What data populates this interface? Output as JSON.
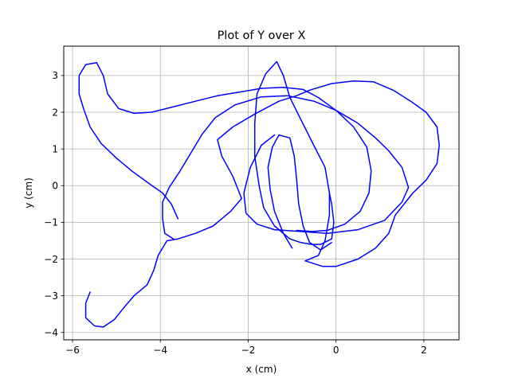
{
  "chart_data": {
    "type": "line",
    "title": "Plot of Y over X",
    "xlabel": "x (cm)",
    "ylabel": "y (cm)",
    "xlim": [
      -6.2,
      2.8
    ],
    "ylim": [
      -4.2,
      3.8
    ],
    "grid": true,
    "x_ticks": [
      -6,
      -4,
      -2,
      0,
      2
    ],
    "y_ticks": [
      -4,
      -3,
      -2,
      -1,
      0,
      1,
      2,
      3
    ],
    "x_tick_labels": [
      "−6",
      "−4",
      "−2",
      "0",
      "2"
    ],
    "y_tick_labels": [
      "−4",
      "−3",
      "−2",
      "−1",
      "0",
      "1",
      "2",
      "3"
    ],
    "series": [
      {
        "color": "#0000ff",
        "points": [
          [
            -5.6,
            -2.9
          ],
          [
            -5.7,
            -3.2
          ],
          [
            -5.7,
            -3.6
          ],
          [
            -5.5,
            -3.82
          ],
          [
            -5.3,
            -3.85
          ],
          [
            -5.05,
            -3.65
          ],
          [
            -4.85,
            -3.35
          ],
          [
            -4.6,
            -3.0
          ],
          [
            -4.3,
            -2.7
          ],
          [
            -4.15,
            -2.3
          ],
          [
            -4.05,
            -1.9
          ],
          [
            -3.85,
            -1.5
          ],
          [
            -3.6,
            -1.45
          ],
          [
            -3.2,
            -1.3
          ],
          [
            -2.8,
            -1.1
          ],
          [
            -2.4,
            -0.7
          ],
          [
            -2.15,
            -0.35
          ],
          [
            -2.35,
            0.25
          ],
          [
            -2.6,
            0.8
          ],
          [
            -2.7,
            1.25
          ],
          [
            -2.35,
            1.6
          ],
          [
            -1.85,
            1.95
          ],
          [
            -1.3,
            2.3
          ],
          [
            -0.9,
            2.45
          ],
          [
            -0.6,
            2.6
          ],
          [
            -0.1,
            2.78
          ],
          [
            0.4,
            2.85
          ],
          [
            0.85,
            2.83
          ],
          [
            1.3,
            2.6
          ],
          [
            1.7,
            2.3
          ],
          [
            2.05,
            2.0
          ],
          [
            2.3,
            1.6
          ],
          [
            2.35,
            1.1
          ],
          [
            2.3,
            0.6
          ],
          [
            2.05,
            0.15
          ],
          [
            1.75,
            -0.2
          ],
          [
            1.35,
            -0.8
          ],
          [
            1.2,
            -1.3
          ],
          [
            0.9,
            -1.7
          ],
          [
            0.5,
            -2.0
          ],
          [
            0.0,
            -2.2
          ],
          [
            -0.3,
            -2.2
          ],
          [
            -0.7,
            -2.05
          ]
        ]
      },
      {
        "color": "#0000ff",
        "points": [
          [
            -0.7,
            -2.05
          ],
          [
            -0.4,
            -1.9
          ],
          [
            -0.25,
            -1.5
          ],
          [
            -0.15,
            -0.8
          ],
          [
            -0.15,
            -0.2
          ],
          [
            -0.25,
            0.5
          ],
          [
            -0.55,
            1.2
          ],
          [
            -0.8,
            1.8
          ],
          [
            -1.05,
            2.4
          ],
          [
            -1.2,
            3.0
          ],
          [
            -1.35,
            3.38
          ],
          [
            -1.6,
            3.05
          ],
          [
            -1.8,
            2.5
          ],
          [
            -1.85,
            1.7
          ],
          [
            -1.85,
            0.8
          ],
          [
            -1.75,
            0.0
          ],
          [
            -1.65,
            -0.6
          ],
          [
            -1.4,
            -1.1
          ],
          [
            -1.05,
            -1.45
          ],
          [
            -0.8,
            -1.55
          ],
          [
            -0.55,
            -1.6
          ],
          [
            -0.35,
            -1.6
          ],
          [
            -0.1,
            -1.45
          ],
          [
            -0.05,
            -1.0
          ],
          [
            -0.1,
            -0.5
          ],
          [
            -0.15,
            -0.2
          ]
        ]
      },
      {
        "color": "#0000ff",
        "points": [
          [
            -1.0,
            -1.7
          ],
          [
            -1.2,
            -1.3
          ],
          [
            -1.4,
            -0.7
          ],
          [
            -1.5,
            -0.1
          ],
          [
            -1.55,
            0.5
          ],
          [
            -1.45,
            1.05
          ],
          [
            -1.3,
            1.38
          ],
          [
            -1.05,
            1.3
          ],
          [
            -0.95,
            0.8
          ],
          [
            -0.9,
            0.2
          ],
          [
            -0.85,
            -0.5
          ],
          [
            -0.75,
            -1.1
          ],
          [
            -0.6,
            -1.55
          ],
          [
            -0.35,
            -1.75
          ],
          [
            -0.1,
            -1.55
          ]
        ]
      },
      {
        "color": "#0000ff",
        "points": [
          [
            -1.4,
            1.38
          ],
          [
            -1.7,
            1.1
          ],
          [
            -1.95,
            0.5
          ],
          [
            -2.1,
            -0.2
          ],
          [
            -2.05,
            -0.75
          ],
          [
            -1.8,
            -1.05
          ],
          [
            -1.4,
            -1.2
          ],
          [
            -0.8,
            -1.25
          ],
          [
            -0.2,
            -1.3
          ],
          [
            0.5,
            -1.2
          ],
          [
            1.1,
            -0.95
          ],
          [
            1.5,
            -0.45
          ],
          [
            1.65,
            -0.05
          ],
          [
            1.5,
            0.5
          ],
          [
            1.2,
            0.95
          ],
          [
            0.9,
            1.3
          ],
          [
            0.5,
            1.7
          ],
          [
            0.0,
            2.05
          ],
          [
            -0.5,
            2.3
          ],
          [
            -1.1,
            2.45
          ],
          [
            -1.7,
            2.42
          ],
          [
            -2.3,
            2.2
          ],
          [
            -2.75,
            1.85
          ],
          [
            -3.05,
            1.4
          ],
          [
            -3.3,
            0.9
          ],
          [
            -3.55,
            0.4
          ],
          [
            -3.8,
            -0.05
          ],
          [
            -3.95,
            -0.45
          ],
          [
            -3.95,
            -0.9
          ],
          [
            -3.9,
            -1.3
          ],
          [
            -3.7,
            -1.45
          ]
        ]
      },
      {
        "color": "#0000ff",
        "points": [
          [
            -3.6,
            -0.9
          ],
          [
            -3.75,
            -0.5
          ],
          [
            -3.95,
            -0.2
          ],
          [
            -4.25,
            0.05
          ],
          [
            -4.65,
            0.4
          ],
          [
            -5.0,
            0.75
          ],
          [
            -5.35,
            1.15
          ],
          [
            -5.6,
            1.6
          ],
          [
            -5.75,
            2.1
          ],
          [
            -5.85,
            2.5
          ],
          [
            -5.85,
            3.0
          ],
          [
            -5.7,
            3.3
          ],
          [
            -5.45,
            3.35
          ],
          [
            -5.3,
            3.0
          ],
          [
            -5.2,
            2.5
          ],
          [
            -4.95,
            2.1
          ],
          [
            -4.6,
            1.97
          ],
          [
            -4.2,
            2.0
          ],
          [
            -3.7,
            2.15
          ],
          [
            -3.2,
            2.3
          ],
          [
            -2.7,
            2.45
          ],
          [
            -2.2,
            2.55
          ],
          [
            -1.7,
            2.65
          ],
          [
            -1.2,
            2.68
          ],
          [
            -0.75,
            2.62
          ],
          [
            -0.4,
            2.4
          ],
          [
            0.0,
            2.05
          ],
          [
            0.4,
            1.6
          ],
          [
            0.7,
            1.05
          ],
          [
            0.8,
            0.4
          ],
          [
            0.75,
            -0.2
          ],
          [
            0.55,
            -0.7
          ],
          [
            0.2,
            -1.05
          ],
          [
            -0.2,
            -1.22
          ],
          [
            -0.55,
            -1.25
          ],
          [
            -0.9,
            -1.22
          ]
        ]
      }
    ]
  }
}
